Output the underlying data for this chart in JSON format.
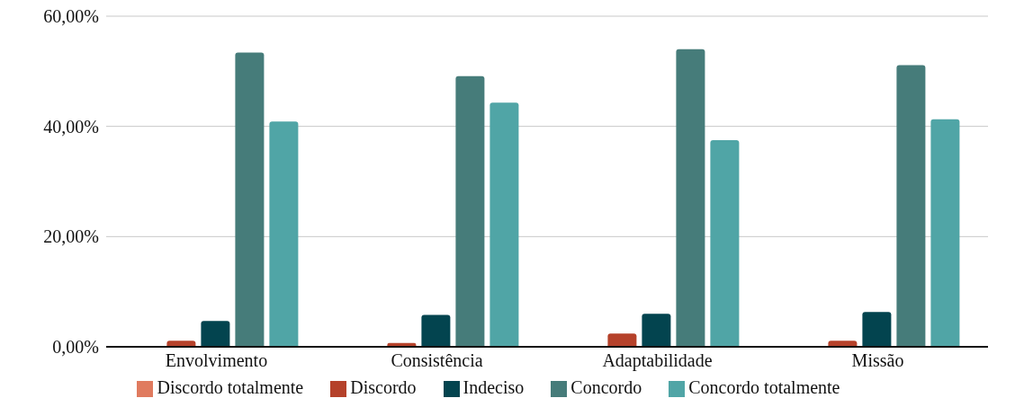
{
  "chart_data": {
    "type": "bar",
    "categories": [
      "Envolvimento",
      "Consistência",
      "Adaptabilidade",
      "Missão"
    ],
    "series": [
      {
        "name": "Discordo totalmente",
        "color": "#e07b5f",
        "values": [
          0,
          0,
          0,
          0
        ]
      },
      {
        "name": "Discordo",
        "color": "#b5412a",
        "values": [
          1.1,
          0.7,
          2.4,
          1.1
        ]
      },
      {
        "name": "Indeciso",
        "color": "#03444f",
        "values": [
          4.7,
          5.8,
          6.0,
          6.3
        ]
      },
      {
        "name": "Concordo",
        "color": "#467c7a",
        "values": [
          53.4,
          49.1,
          54.0,
          51.1
        ]
      },
      {
        "name": "Concordo totalmente",
        "color": "#50a5a6",
        "values": [
          40.9,
          44.3,
          37.5,
          41.3
        ]
      }
    ],
    "ylim": [
      0,
      60
    ],
    "yticks": [
      {
        "value": 0,
        "label": "0,00%"
      },
      {
        "value": 20,
        "label": "20,00%"
      },
      {
        "value": 40,
        "label": "40,00%"
      },
      {
        "value": 60,
        "label": "60,00%"
      }
    ],
    "grid": "y",
    "legend": "bottom"
  }
}
